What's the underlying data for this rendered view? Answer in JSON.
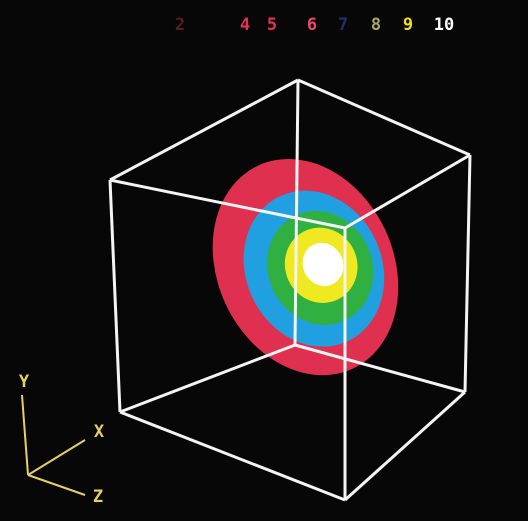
{
  "legend": {
    "items": [
      {
        "label": "2",
        "color": "#5a1a28"
      },
      {
        "label": "4",
        "color": "#e8305a"
      },
      {
        "label": "5",
        "color": "#e8305a"
      },
      {
        "label": "6",
        "color": "#f04868"
      },
      {
        "label": "7",
        "color": "#22306a"
      },
      {
        "label": "8",
        "color": "#a8a860"
      },
      {
        "label": "9",
        "color": "#f0e020"
      },
      {
        "label": "10",
        "color": "#ffffff"
      }
    ]
  },
  "axes": {
    "y": "Y",
    "x": "X",
    "z": "Z"
  }
}
